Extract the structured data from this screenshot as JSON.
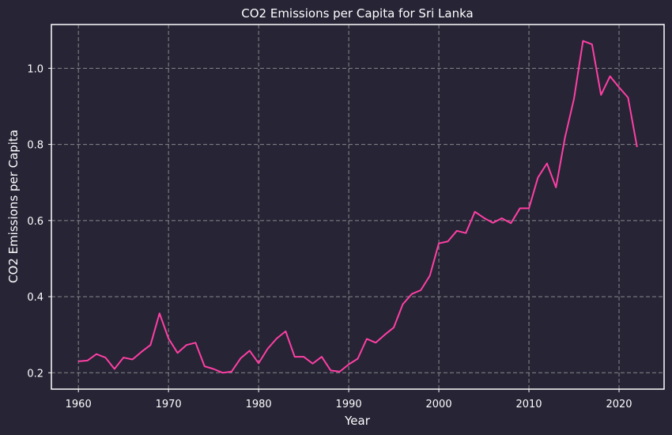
{
  "chart_data": {
    "type": "line",
    "title": "CO2 Emissions per Capita for Sri Lanka",
    "xlabel": "Year",
    "ylabel": "CO2 Emissions per Capita",
    "xlim": [
      1957,
      2025
    ],
    "ylim": [
      0.157,
      1.115
    ],
    "xticks": [
      1960,
      1970,
      1980,
      1990,
      2000,
      2010,
      2020
    ],
    "xtick_labels": [
      "1960",
      "1970",
      "1980",
      "1990",
      "2000",
      "2010",
      "2020"
    ],
    "yticks": [
      0.2,
      0.4,
      0.6,
      0.8,
      1.0
    ],
    "ytick_labels": [
      "0.2",
      "0.4",
      "0.6",
      "0.8",
      "1.0"
    ],
    "grid": true,
    "line_color": "#ff3fa4",
    "background_color": "#262435",
    "series": [
      {
        "x": [
          1960,
          1961,
          1962,
          1963,
          1964,
          1965,
          1966,
          1967,
          1968,
          1969,
          1970,
          1971,
          1972,
          1973,
          1974,
          1975,
          1976,
          1977,
          1978,
          1979,
          1980,
          1981,
          1982,
          1983,
          1984,
          1985,
          1986,
          1987,
          1988,
          1989,
          1990,
          1991,
          1992,
          1993,
          1994,
          1995,
          1996,
          1997,
          1998,
          1999,
          2000,
          2001,
          2002,
          2003,
          2004,
          2005,
          2006,
          2007,
          2008,
          2009,
          2010,
          2011,
          2012,
          2013,
          2014,
          2015,
          2016,
          2017,
          2018,
          2019,
          2020,
          2021,
          2022
        ],
        "values": [
          0.23,
          0.232,
          0.249,
          0.24,
          0.21,
          0.24,
          0.235,
          0.255,
          0.273,
          0.356,
          0.29,
          0.252,
          0.273,
          0.279,
          0.217,
          0.21,
          0.2,
          0.203,
          0.238,
          0.258,
          0.225,
          0.263,
          0.29,
          0.309,
          0.242,
          0.242,
          0.224,
          0.242,
          0.206,
          0.203,
          0.222,
          0.237,
          0.289,
          0.279,
          0.3,
          0.319,
          0.38,
          0.407,
          0.417,
          0.455,
          0.54,
          0.545,
          0.573,
          0.567,
          0.623,
          0.607,
          0.594,
          0.606,
          0.593,
          0.632,
          0.632,
          0.713,
          0.75,
          0.687,
          0.818,
          0.92,
          1.072,
          1.063,
          0.93,
          0.979,
          0.95,
          0.923,
          0.793
        ]
      }
    ]
  }
}
